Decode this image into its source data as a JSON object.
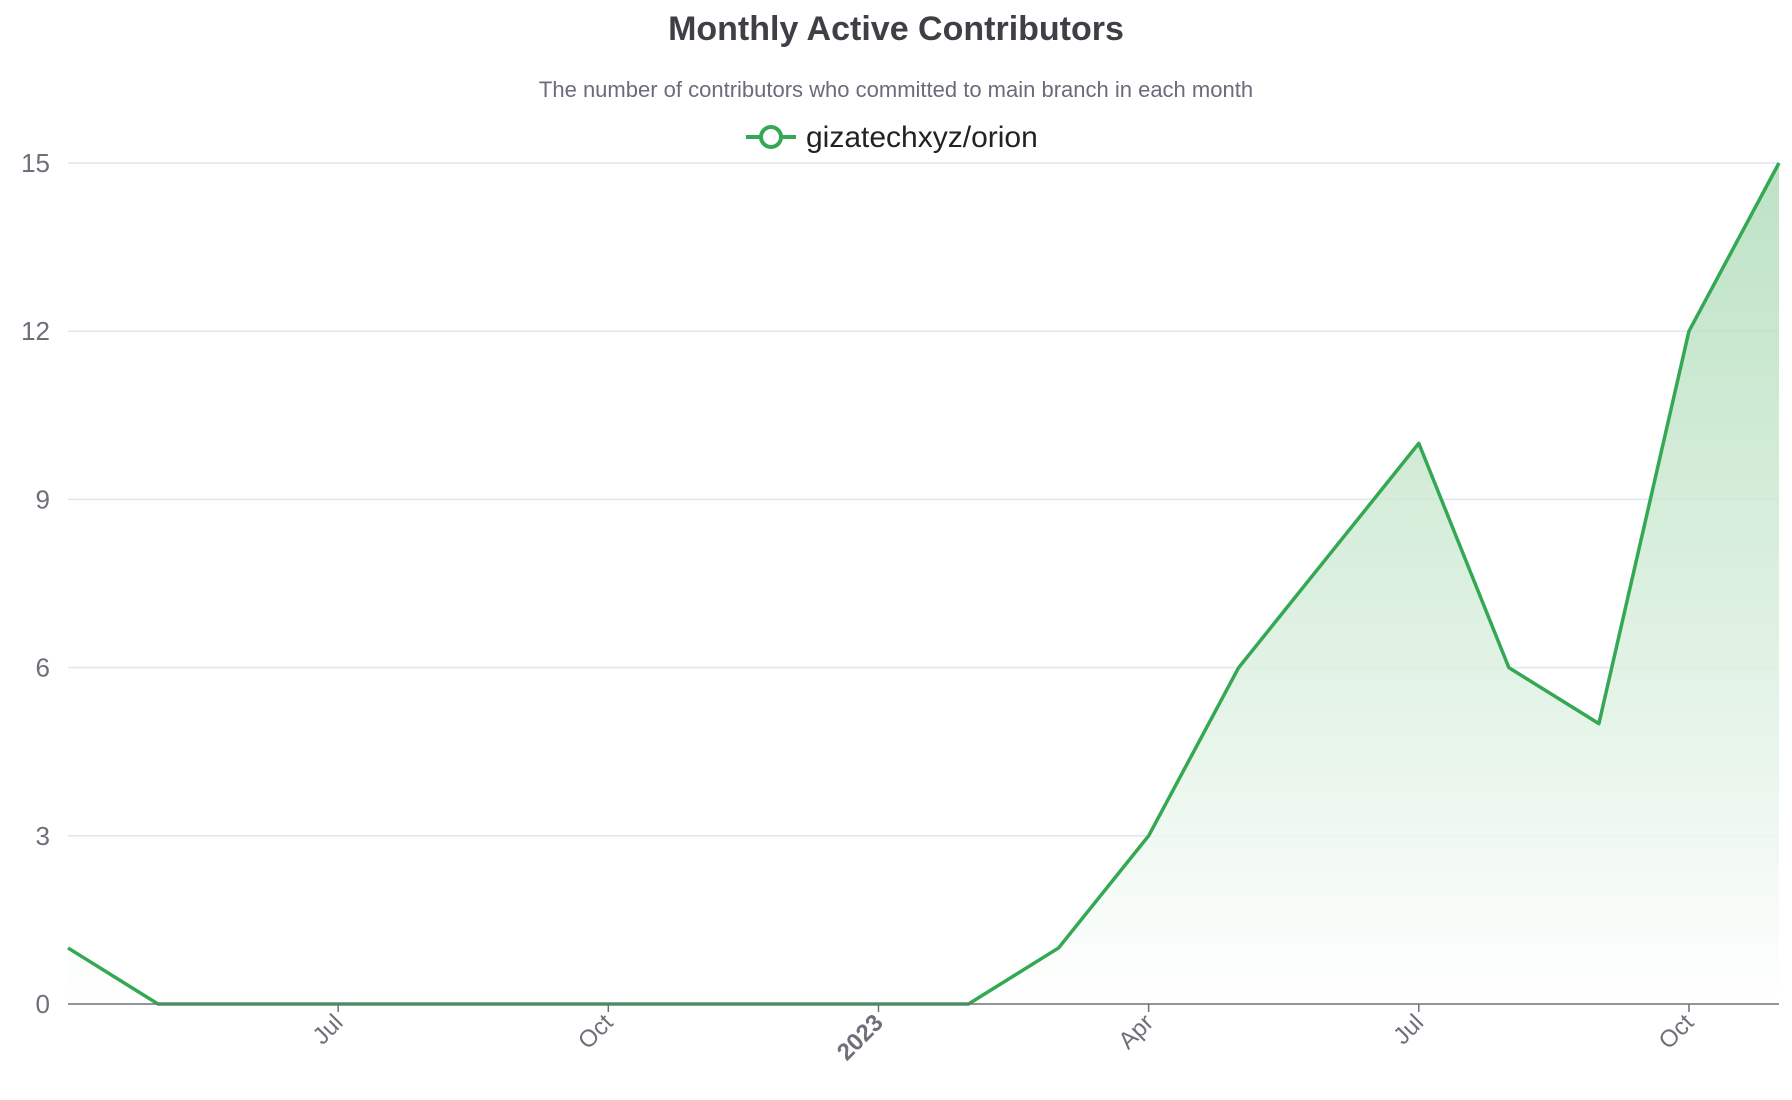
{
  "chart_data": {
    "type": "area",
    "title": "Monthly Active Contributors",
    "subtitle": "The number of contributors who committed to main branch in each month",
    "xlabel": "",
    "ylabel": "",
    "x": [
      "2022-04",
      "2022-05",
      "2022-06",
      "2022-07",
      "2022-08",
      "2022-09",
      "2022-10",
      "2022-11",
      "2022-12",
      "2023-01",
      "2023-02",
      "2023-03",
      "2023-04",
      "2023-05",
      "2023-06",
      "2023-07",
      "2023-08",
      "2023-09",
      "2023-10",
      "2023-11"
    ],
    "series": [
      {
        "name": "gizatechxyz/orion",
        "values": [
          1,
          0,
          0,
          0,
          0,
          0,
          0,
          0,
          0,
          0,
          0,
          1,
          3,
          6,
          8,
          10,
          6,
          5,
          12,
          15
        ]
      }
    ],
    "x_ticks": [
      {
        "x": "2022-07",
        "label": "Jul",
        "bold": false
      },
      {
        "x": "2022-10",
        "label": "Oct",
        "bold": false
      },
      {
        "x": "2023-01",
        "label": "2023",
        "bold": true
      },
      {
        "x": "2023-04",
        "label": "Apr",
        "bold": false
      },
      {
        "x": "2023-07",
        "label": "Jul",
        "bold": false
      },
      {
        "x": "2023-10",
        "label": "Oct",
        "bold": false
      }
    ],
    "y_ticks": [
      0,
      3,
      6,
      9,
      12,
      15
    ],
    "ylim": [
      0,
      15
    ],
    "grid": true,
    "legend_position": "top-center",
    "colors": {
      "line": "#34a853",
      "area_top": "#a8d9b2",
      "area_bottom": "#ffffff"
    }
  }
}
